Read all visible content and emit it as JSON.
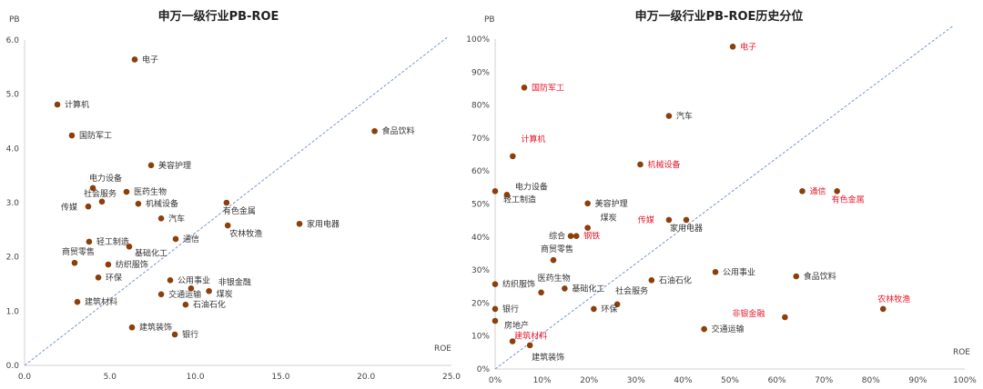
{
  "chart_data": [
    {
      "type": "scatter",
      "title": "申万一级行业PB-ROE",
      "xlabel": "ROE",
      "ylabel": "PB",
      "xlim": [
        0,
        25
      ],
      "ylim": [
        0,
        6
      ],
      "xticks": [
        "0.0",
        "5.0",
        "10.0",
        "15.0",
        "20.0",
        "25.0"
      ],
      "yticks": [
        "0.0",
        "1.0",
        "2.0",
        "3.0",
        "4.0",
        "5.0",
        "6.0"
      ],
      "grid": false,
      "reference_line": {
        "style": "dashed",
        "from": [
          0,
          0
        ],
        "to": [
          24.8,
          6.06
        ]
      },
      "point_color": "#8b3f0b",
      "points": [
        {
          "name": "电子",
          "x": 6.45,
          "y": 5.64
        },
        {
          "name": "计算机",
          "x": 1.92,
          "y": 4.81
        },
        {
          "name": "国防军工",
          "x": 2.77,
          "y": 4.24
        },
        {
          "name": "美容护理",
          "x": 7.41,
          "y": 3.69
        },
        {
          "name": "食品饮料",
          "x": 20.5,
          "y": 4.32
        },
        {
          "name": "电力设备",
          "x": 4.0,
          "y": 3.27
        },
        {
          "name": "医药生物",
          "x": 5.97,
          "y": 3.2
        },
        {
          "name": "社会服务",
          "x": 4.53,
          "y": 3.02
        },
        {
          "name": "传媒",
          "x": 3.73,
          "y": 2.93
        },
        {
          "name": "机械设备",
          "x": 6.66,
          "y": 2.98
        },
        {
          "name": "汽车",
          "x": 8.0,
          "y": 2.71
        },
        {
          "name": "有色金属",
          "x": 11.83,
          "y": 3.0
        },
        {
          "name": "农林牧渔",
          "x": 11.9,
          "y": 2.58
        },
        {
          "name": "家用电器",
          "x": 16.1,
          "y": 2.61
        },
        {
          "name": "通信",
          "x": 8.85,
          "y": 2.33
        },
        {
          "name": "轻工制造",
          "x": 3.78,
          "y": 2.28
        },
        {
          "name": "基础化工",
          "x": 6.13,
          "y": 2.19
        },
        {
          "name": "商贸零售",
          "x": 2.93,
          "y": 1.89
        },
        {
          "name": "纺织服饰",
          "x": 4.9,
          "y": 1.86
        },
        {
          "name": "环保",
          "x": 4.32,
          "y": 1.62
        },
        {
          "name": "公用事业",
          "x": 8.53,
          "y": 1.57
        },
        {
          "name": "非银金融",
          "x": 9.75,
          "y": 1.42
        },
        {
          "name": "煤炭",
          "x": 10.8,
          "y": 1.37
        },
        {
          "name": "交通运输",
          "x": 8.0,
          "y": 1.31
        },
        {
          "name": "石油石化",
          "x": 9.43,
          "y": 1.12
        },
        {
          "name": "建筑材料",
          "x": 3.09,
          "y": 1.17
        },
        {
          "name": "建筑装饰",
          "x": 6.29,
          "y": 0.7
        },
        {
          "name": "银行",
          "x": 8.8,
          "y": 0.57
        }
      ]
    },
    {
      "type": "scatter",
      "title": "申万一级行业PB-ROE历史分位",
      "xlabel": "ROE",
      "ylabel": "PB",
      "xlim": [
        0,
        100
      ],
      "ylim": [
        0,
        100
      ],
      "xticks": [
        "0%",
        "10%",
        "20%",
        "30%",
        "40%",
        "50%",
        "60%",
        "70%",
        "80%",
        "90%",
        "100%"
      ],
      "yticks": [
        "0%",
        "10%",
        "20%",
        "30%",
        "40%",
        "50%",
        "60%",
        "70%",
        "80%",
        "90%",
        "100%"
      ],
      "grid": false,
      "reference_line": {
        "style": "dashed",
        "from": [
          0,
          0
        ],
        "to": [
          97.5,
          104
        ]
      },
      "point_color": "#8b3f0b",
      "highlight_color": "#e8192c",
      "points": [
        {
          "name": "电子",
          "x": 50.6,
          "y": 97.7,
          "highlight": true
        },
        {
          "name": "国防军工",
          "x": 6.2,
          "y": 85.3,
          "highlight": true
        },
        {
          "name": "汽车",
          "x": 37.0,
          "y": 76.7
        },
        {
          "name": "计算机",
          "x": 3.75,
          "y": 64.5,
          "highlight": true
        },
        {
          "name": "机械设备",
          "x": 30.9,
          "y": 62.0,
          "highlight": true
        },
        {
          "name": "轻工制造",
          "x": 0,
          "y": 53.9
        },
        {
          "name": "电力设备",
          "x": 2.5,
          "y": 52.8
        },
        {
          "name": "通信",
          "x": 65.4,
          "y": 53.9,
          "highlight": true
        },
        {
          "name": "有色金属",
          "x": 72.8,
          "y": 53.9,
          "highlight": true
        },
        {
          "name": "美容护理",
          "x": 19.7,
          "y": 50.2
        },
        {
          "name": "传媒",
          "x": 37.0,
          "y": 45.2,
          "highlight": true
        },
        {
          "name": "家用电器",
          "x": 40.7,
          "y": 45.2
        },
        {
          "name": "煤炭",
          "x": 19.7,
          "y": 42.8
        },
        {
          "name": "综合",
          "x": 16.1,
          "y": 40.3
        },
        {
          "name": "钢铁",
          "x": 17.3,
          "y": 40.3,
          "highlight": true
        },
        {
          "name": "商贸零售",
          "x": 12.4,
          "y": 33.0
        },
        {
          "name": "公用事业",
          "x": 46.9,
          "y": 29.4
        },
        {
          "name": "食品饮料",
          "x": 64.1,
          "y": 28.1
        },
        {
          "name": "石油石化",
          "x": 33.3,
          "y": 26.9
        },
        {
          "name": "纺织服饰",
          "x": 0,
          "y": 25.7
        },
        {
          "name": "医药生物",
          "x": 9.8,
          "y": 23.2
        },
        {
          "name": "基础化工",
          "x": 14.8,
          "y": 24.4
        },
        {
          "name": "社会服务",
          "x": 26.0,
          "y": 19.6
        },
        {
          "name": "环保",
          "x": 21.0,
          "y": 18.2
        },
        {
          "name": "银行",
          "x": 0,
          "y": 18.2
        },
        {
          "name": "农林牧渔",
          "x": 82.6,
          "y": 18.2,
          "highlight": true
        },
        {
          "name": "非银金融",
          "x": 61.7,
          "y": 15.7,
          "highlight": true
        },
        {
          "name": "房地产",
          "x": 0,
          "y": 14.6
        },
        {
          "name": "交通运输",
          "x": 44.5,
          "y": 12.1
        },
        {
          "name": "建筑材料",
          "x": 3.7,
          "y": 8.4,
          "highlight": true
        },
        {
          "name": "建筑装饰",
          "x": 7.4,
          "y": 7.2
        }
      ]
    }
  ]
}
